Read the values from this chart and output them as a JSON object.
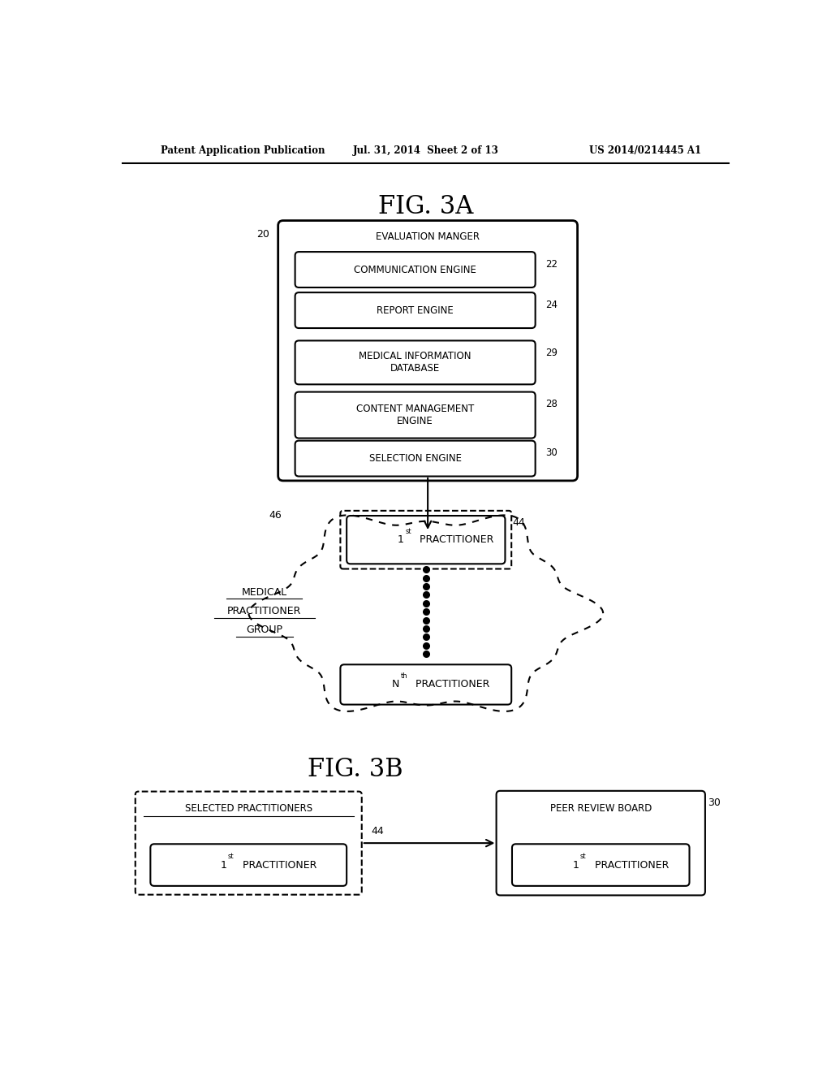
{
  "header_left": "Patent Application Publication",
  "header_center": "Jul. 31, 2014  Sheet 2 of 13",
  "header_right": "US 2014/0214445 A1",
  "fig3a_title": "FIG. 3A",
  "fig3b_title": "FIG. 3B",
  "eval_manager_label": "EVALUATION MANGER",
  "eval_manager_num": "20",
  "boxes_3a": [
    {
      "label": "COMMUNICATION ENGINE",
      "num": "22"
    },
    {
      "label": "REPORT ENGINE",
      "num": "24"
    },
    {
      "label": "MEDICAL INFORMATION\nDATABASE",
      "num": "29"
    },
    {
      "label": "CONTENT MANAGEMENT\nENGINE",
      "num": "28"
    },
    {
      "label": "SELECTION ENGINE",
      "num": "30"
    }
  ],
  "cloud_lines": [
    "MEDICAL",
    "PRACTITIONER",
    "GROUP"
  ],
  "cloud_num": "46",
  "practitioner1_label": "1st PRACTITIONER",
  "practitioner1_num": "44",
  "practitionerN_label": "Nth PRACTITIONER",
  "selected_label": "SELECTED PRACTITIONERS",
  "peer_review_label": "PEER REVIEW BOARD",
  "peer_review_num": "30",
  "selected_pract_label": "1st PRACTITIONER",
  "peer_pract_label": "1st PRACTITIONER",
  "arrow_label": "44",
  "bg_color": "#ffffff",
  "box_color": "#000000",
  "text_color": "#000000"
}
